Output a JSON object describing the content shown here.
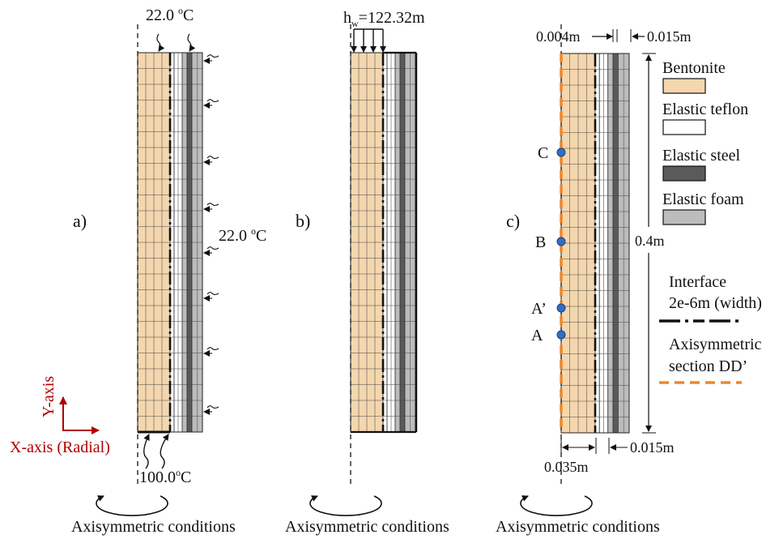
{
  "colors": {
    "bentonite": "#f4d7ae",
    "teflon": "#ffffff",
    "steel": "#5a5a5a",
    "foam": "#bcbcbc",
    "interface": "#111111",
    "axisym_section": "#f0872a",
    "axis_arrow": "#b00000",
    "point_marker": "#2f6fc8"
  },
  "panel_a": {
    "label": "a)",
    "top_temp": "22.0",
    "side_temp": "22.0",
    "bottom_temp": "100.0",
    "temp_unit_sup": "o",
    "temp_unit": "C",
    "condition": "Axisymmetric conditions"
  },
  "panel_b": {
    "label": "b)",
    "head_symbol": "h",
    "head_subscript": "w",
    "head_value": "=122.32m",
    "condition": "Axisymmetric conditions"
  },
  "panel_c": {
    "label": "c)",
    "dim_top_left": "0.004m",
    "dim_top_right": "0.015m",
    "dim_height": "0.4m",
    "dim_bottom_left": "0.035m",
    "dim_bottom_right": "0.015m",
    "points": [
      "C",
      "B",
      "A’",
      "A"
    ],
    "condition": "Axisymmetric conditions"
  },
  "legend": {
    "bentonite": "Bentonite",
    "teflon": "Elastic teflon",
    "steel": "Elastic steel",
    "foam": "Elastic foam",
    "interface_line1": "Interface",
    "interface_line2": "2e-6m (width)",
    "axisym_line1": "Axisymmetric",
    "axisym_line2": "section DD’"
  },
  "axes": {
    "y_label": "Y-axis",
    "x_label": "X-axis (Radial)"
  }
}
